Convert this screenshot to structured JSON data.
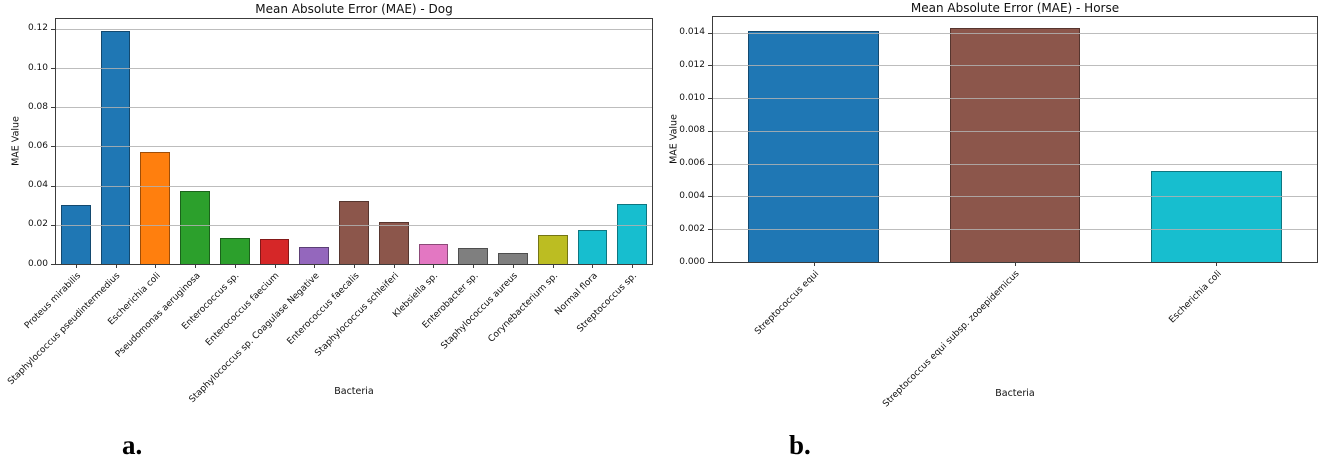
{
  "captions": {
    "a": "a.",
    "b": "b."
  },
  "chart_data": [
    {
      "panel": "a.",
      "type": "bar",
      "title": "Mean Absolute Error (MAE) - Dog",
      "xlabel": "Bacteria",
      "ylabel": "MAE Value",
      "ylim": [
        0,
        0.125
      ],
      "grid": true,
      "legend": "none",
      "yticks": [
        0.0,
        0.02,
        0.04,
        0.06,
        0.08,
        0.1,
        0.12
      ],
      "ytick_labels": [
        "0.00",
        "0.02",
        "0.04",
        "0.06",
        "0.08",
        "0.10",
        "0.12"
      ],
      "categories": [
        "Proteus mirabilis",
        "Staphylococcus pseudintermedius",
        "Escherichia coli",
        "Pseudomonas aeruginosa",
        "Enterococcus sp.",
        "Enterococcus faecium",
        "Staphylococcus sp. Coagulase Negative",
        "Enterococcus faecalis",
        "Staphylococcus schleiferi",
        "Klebsiella sp.",
        "Enterobacter sp.",
        "Staphylococcus aureus",
        "Corynebacterium sp.",
        "Normal flora",
        "Streptococcus sp."
      ],
      "values": [
        0.03,
        0.119,
        0.057,
        0.0375,
        0.0135,
        0.013,
        0.0085,
        0.032,
        0.0215,
        0.01,
        0.008,
        0.0055,
        0.015,
        0.0175,
        0.0305
      ],
      "colors": [
        "#1f77b4",
        "#1f77b4",
        "#ff7f0e",
        "#2ca02c",
        "#2ca02c",
        "#d62728",
        "#9467bd",
        "#8c564b",
        "#8c564b",
        "#e377c2",
        "#7f7f7f",
        "#7f7f7f",
        "#bcbd22",
        "#17becf",
        "#17becf"
      ]
    },
    {
      "panel": "b.",
      "type": "bar",
      "title": "Mean Absolute Error (MAE) - Horse",
      "xlabel": "Bacteria",
      "ylabel": "MAE Value",
      "ylim": [
        0,
        0.01495
      ],
      "grid": true,
      "legend": "none",
      "yticks": [
        0.0,
        0.002,
        0.004,
        0.006,
        0.008,
        0.01,
        0.012,
        0.014
      ],
      "ytick_labels": [
        "0.000",
        "0.002",
        "0.004",
        "0.006",
        "0.008",
        "0.010",
        "0.012",
        "0.014"
      ],
      "categories": [
        "Streptococcus equi",
        "Streptococcus equi subsp. zooepidemicus",
        "Escherichia coli"
      ],
      "values": [
        0.0141,
        0.01425,
        0.00555
      ],
      "colors": [
        "#1f77b4",
        "#8c564b",
        "#17becf"
      ]
    }
  ]
}
